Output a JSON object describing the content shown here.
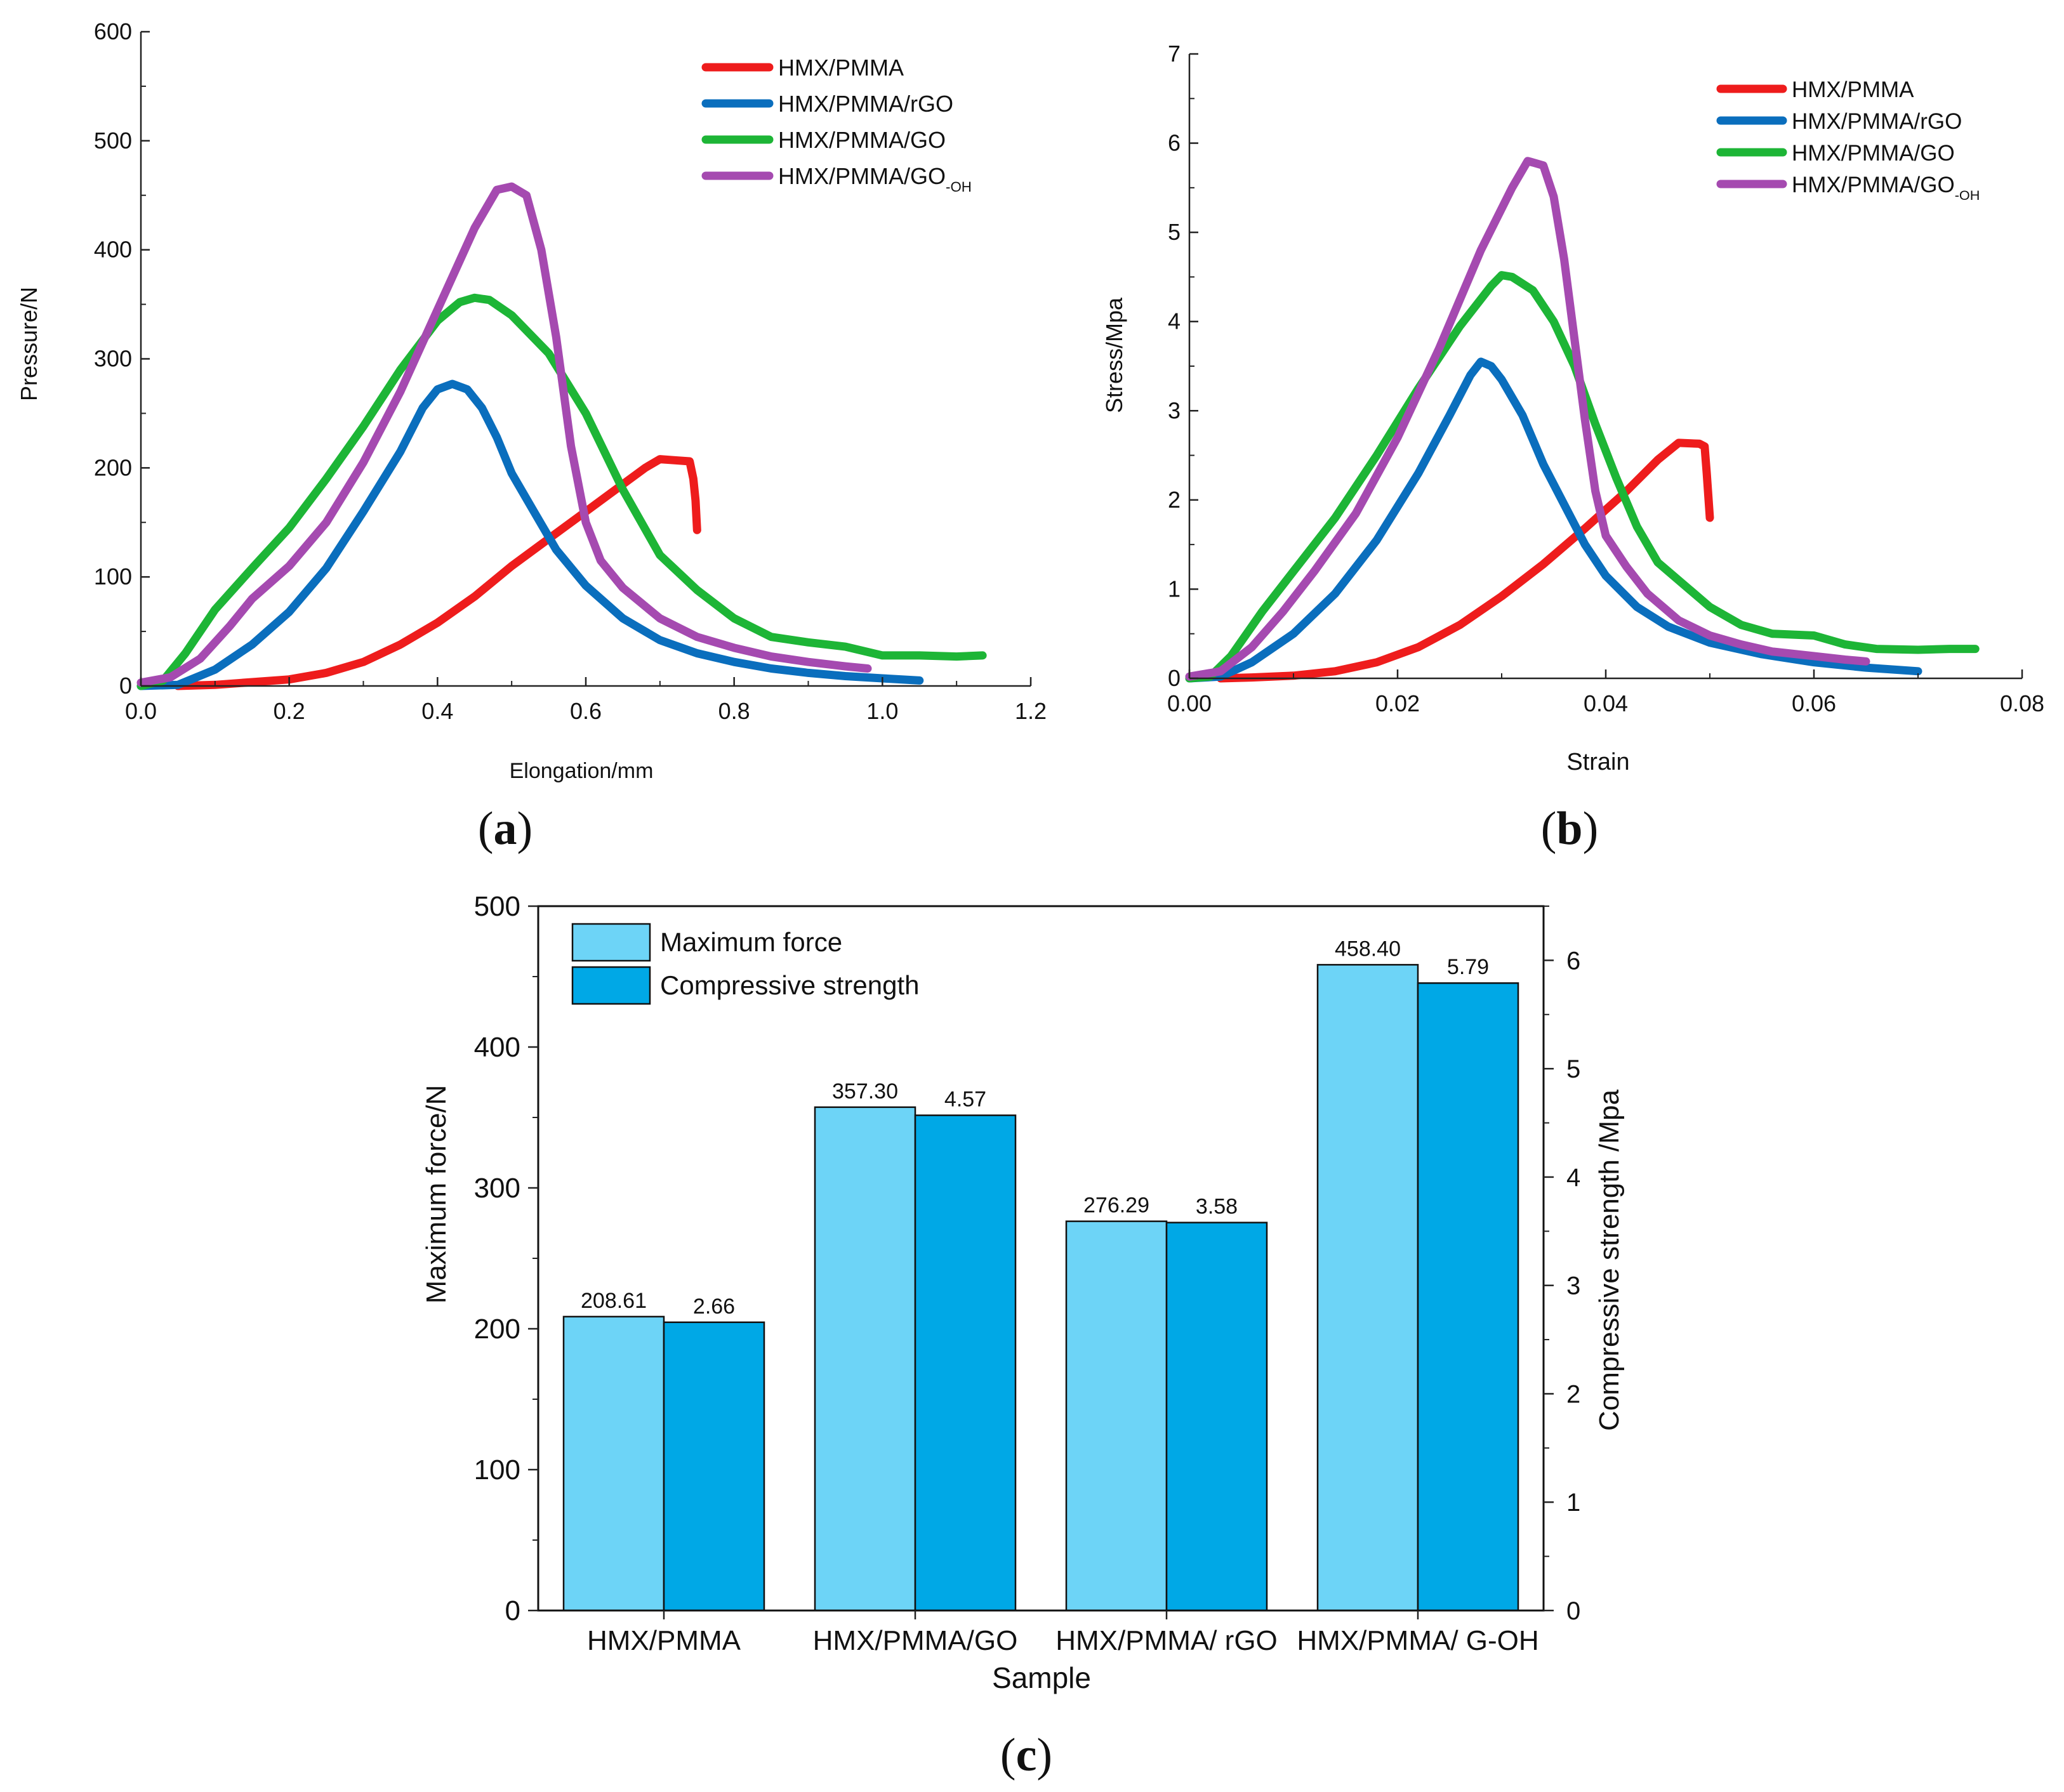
{
  "chart_data": [
    {
      "type": "line",
      "panel_label": "a",
      "xlabel": "Elongation/mm",
      "ylabel": "Pressure/N",
      "xlim": [
        0,
        1.2
      ],
      "ylim": [
        0,
        600
      ],
      "xticks": [
        0.0,
        0.2,
        0.4,
        0.6,
        0.8,
        1.0,
        1.2
      ],
      "xtick_labels": [
        "0.0",
        "0.2",
        "0.4",
        "0.6",
        "0.8",
        "1.0",
        "1.2"
      ],
      "yticks": [
        0,
        100,
        200,
        300,
        400,
        500,
        600
      ],
      "ytick_labels": [
        "0",
        "100",
        "200",
        "300",
        "400",
        "500",
        "600"
      ],
      "legend_position": "top-right",
      "series": [
        {
          "name": "HMX/PMMA",
          "subscript": "",
          "color": "#ee1c1c",
          "points": [
            [
              0.05,
              0
            ],
            [
              0.1,
              1
            ],
            [
              0.2,
              6
            ],
            [
              0.25,
              12
            ],
            [
              0.3,
              22
            ],
            [
              0.35,
              38
            ],
            [
              0.4,
              58
            ],
            [
              0.45,
              82
            ],
            [
              0.5,
              110
            ],
            [
              0.55,
              135
            ],
            [
              0.6,
              160
            ],
            [
              0.65,
              185
            ],
            [
              0.68,
              200
            ],
            [
              0.7,
              208
            ],
            [
              0.72,
              207
            ],
            [
              0.74,
              206
            ],
            [
              0.745,
              190
            ],
            [
              0.748,
              170
            ],
            [
              0.75,
              143
            ]
          ]
        },
        {
          "name": "HMX/PMMA/rGO",
          "subscript": "",
          "color": "#0a6ebd",
          "points": [
            [
              0.0,
              0
            ],
            [
              0.05,
              1
            ],
            [
              0.1,
              15
            ],
            [
              0.15,
              38
            ],
            [
              0.2,
              68
            ],
            [
              0.25,
              108
            ],
            [
              0.3,
              160
            ],
            [
              0.35,
              215
            ],
            [
              0.38,
              255
            ],
            [
              0.4,
              272
            ],
            [
              0.42,
              277
            ],
            [
              0.44,
              272
            ],
            [
              0.46,
              255
            ],
            [
              0.48,
              228
            ],
            [
              0.5,
              195
            ],
            [
              0.53,
              160
            ],
            [
              0.56,
              125
            ],
            [
              0.6,
              92
            ],
            [
              0.65,
              62
            ],
            [
              0.7,
              42
            ],
            [
              0.75,
              30
            ],
            [
              0.8,
              22
            ],
            [
              0.85,
              16
            ],
            [
              0.9,
              12
            ],
            [
              0.95,
              9
            ],
            [
              1.0,
              7
            ],
            [
              1.05,
              5
            ]
          ]
        },
        {
          "name": "HMX/PMMA/GO",
          "subscript": "",
          "color": "#1db536",
          "points": [
            [
              0.0,
              0
            ],
            [
              0.03,
              5
            ],
            [
              0.06,
              30
            ],
            [
              0.1,
              70
            ],
            [
              0.15,
              108
            ],
            [
              0.2,
              145
            ],
            [
              0.25,
              190
            ],
            [
              0.3,
              238
            ],
            [
              0.35,
              290
            ],
            [
              0.4,
              335
            ],
            [
              0.43,
              352
            ],
            [
              0.45,
              356
            ],
            [
              0.47,
              354
            ],
            [
              0.5,
              340
            ],
            [
              0.55,
              305
            ],
            [
              0.6,
              250
            ],
            [
              0.65,
              180
            ],
            [
              0.7,
              120
            ],
            [
              0.75,
              88
            ],
            [
              0.8,
              62
            ],
            [
              0.85,
              45
            ],
            [
              0.9,
              40
            ],
            [
              0.95,
              36
            ],
            [
              1.0,
              28
            ],
            [
              1.05,
              28
            ],
            [
              1.1,
              27
            ],
            [
              1.135,
              28
            ]
          ]
        },
        {
          "name": "HMX/PMMA/GO",
          "subscript": "-OH",
          "color": "#a54ab0",
          "points": [
            [
              0.0,
              3
            ],
            [
              0.04,
              8
            ],
            [
              0.08,
              25
            ],
            [
              0.12,
              55
            ],
            [
              0.15,
              80
            ],
            [
              0.2,
              110
            ],
            [
              0.25,
              150
            ],
            [
              0.3,
              205
            ],
            [
              0.35,
              270
            ],
            [
              0.4,
              345
            ],
            [
              0.45,
              420
            ],
            [
              0.48,
              455
            ],
            [
              0.5,
              458
            ],
            [
              0.52,
              450
            ],
            [
              0.54,
              400
            ],
            [
              0.56,
              320
            ],
            [
              0.58,
              220
            ],
            [
              0.6,
              150
            ],
            [
              0.62,
              115
            ],
            [
              0.65,
              90
            ],
            [
              0.7,
              62
            ],
            [
              0.75,
              45
            ],
            [
              0.8,
              35
            ],
            [
              0.85,
              27
            ],
            [
              0.9,
              22
            ],
            [
              0.95,
              18
            ],
            [
              0.98,
              16
            ]
          ]
        }
      ]
    },
    {
      "type": "line",
      "panel_label": "b",
      "xlabel": "Strain",
      "ylabel": "Stress/Mpa",
      "xlim": [
        0,
        0.08
      ],
      "ylim": [
        0,
        7
      ],
      "xticks": [
        0.0,
        0.02,
        0.04,
        0.06,
        0.08
      ],
      "xtick_labels": [
        "0.00",
        "0.02",
        "0.04",
        "0.06",
        "0.08"
      ],
      "yticks": [
        0,
        1,
        2,
        3,
        4,
        5,
        6,
        7
      ],
      "ytick_labels": [
        "0",
        "1",
        "2",
        "3",
        "4",
        "5",
        "6",
        "7"
      ],
      "legend_position": "top-right",
      "series": [
        {
          "name": "HMX/PMMA",
          "subscript": "",
          "color": "#ee1c1c",
          "points": [
            [
              0.003,
              0
            ],
            [
              0.006,
              0.01
            ],
            [
              0.01,
              0.03
            ],
            [
              0.014,
              0.08
            ],
            [
              0.018,
              0.18
            ],
            [
              0.022,
              0.35
            ],
            [
              0.026,
              0.6
            ],
            [
              0.03,
              0.92
            ],
            [
              0.034,
              1.28
            ],
            [
              0.038,
              1.68
            ],
            [
              0.042,
              2.1
            ],
            [
              0.045,
              2.45
            ],
            [
              0.047,
              2.64
            ],
            [
              0.049,
              2.63
            ],
            [
              0.0495,
              2.6
            ],
            [
              0.0497,
              2.3
            ],
            [
              0.05,
              1.8
            ]
          ]
        },
        {
          "name": "HMX/PMMA/rGO",
          "subscript": "",
          "color": "#0a6ebd",
          "points": [
            [
              0.0,
              0
            ],
            [
              0.003,
              0.02
            ],
            [
              0.006,
              0.18
            ],
            [
              0.01,
              0.5
            ],
            [
              0.014,
              0.95
            ],
            [
              0.018,
              1.55
            ],
            [
              0.022,
              2.3
            ],
            [
              0.025,
              2.95
            ],
            [
              0.027,
              3.4
            ],
            [
              0.028,
              3.55
            ],
            [
              0.029,
              3.5
            ],
            [
              0.03,
              3.35
            ],
            [
              0.032,
              2.95
            ],
            [
              0.034,
              2.4
            ],
            [
              0.036,
              1.95
            ],
            [
              0.038,
              1.5
            ],
            [
              0.04,
              1.15
            ],
            [
              0.043,
              0.8
            ],
            [
              0.046,
              0.58
            ],
            [
              0.05,
              0.4
            ],
            [
              0.055,
              0.27
            ],
            [
              0.06,
              0.18
            ],
            [
              0.065,
              0.12
            ],
            [
              0.07,
              0.08
            ]
          ]
        },
        {
          "name": "HMX/PMMA/GO",
          "subscript": "",
          "color": "#1db536",
          "points": [
            [
              0.0,
              0
            ],
            [
              0.002,
              0.02
            ],
            [
              0.004,
              0.25
            ],
            [
              0.007,
              0.75
            ],
            [
              0.01,
              1.2
            ],
            [
              0.014,
              1.8
            ],
            [
              0.018,
              2.5
            ],
            [
              0.022,
              3.25
            ],
            [
              0.026,
              3.95
            ],
            [
              0.029,
              4.4
            ],
            [
              0.03,
              4.52
            ],
            [
              0.031,
              4.5
            ],
            [
              0.033,
              4.35
            ],
            [
              0.035,
              4.0
            ],
            [
              0.037,
              3.5
            ],
            [
              0.039,
              2.85
            ],
            [
              0.041,
              2.25
            ],
            [
              0.043,
              1.7
            ],
            [
              0.045,
              1.3
            ],
            [
              0.048,
              1.0
            ],
            [
              0.05,
              0.8
            ],
            [
              0.053,
              0.6
            ],
            [
              0.056,
              0.5
            ],
            [
              0.06,
              0.48
            ],
            [
              0.063,
              0.38
            ],
            [
              0.066,
              0.33
            ],
            [
              0.07,
              0.32
            ],
            [
              0.073,
              0.33
            ],
            [
              0.0755,
              0.33
            ]
          ]
        },
        {
          "name": "HMX/PMMA/GO",
          "subscript": "-OH",
          "color": "#a54ab0",
          "points": [
            [
              0.0,
              0.02
            ],
            [
              0.003,
              0.08
            ],
            [
              0.006,
              0.35
            ],
            [
              0.009,
              0.75
            ],
            [
              0.012,
              1.2
            ],
            [
              0.016,
              1.85
            ],
            [
              0.02,
              2.7
            ],
            [
              0.024,
              3.7
            ],
            [
              0.028,
              4.8
            ],
            [
              0.031,
              5.5
            ],
            [
              0.0325,
              5.8
            ],
            [
              0.034,
              5.75
            ],
            [
              0.035,
              5.4
            ],
            [
              0.036,
              4.7
            ],
            [
              0.037,
              3.8
            ],
            [
              0.038,
              2.9
            ],
            [
              0.039,
              2.1
            ],
            [
              0.04,
              1.6
            ],
            [
              0.042,
              1.25
            ],
            [
              0.044,
              0.95
            ],
            [
              0.047,
              0.65
            ],
            [
              0.05,
              0.48
            ],
            [
              0.053,
              0.38
            ],
            [
              0.056,
              0.3
            ],
            [
              0.06,
              0.25
            ],
            [
              0.063,
              0.21
            ],
            [
              0.065,
              0.19
            ]
          ]
        }
      ]
    },
    {
      "type": "bar",
      "panel_label": "c",
      "xlabel": "Sample",
      "ylabel": "Maximum force/N",
      "ylabel_right": "Compressive strength /Mpa",
      "ylim": [
        0,
        500
      ],
      "ylim_right": [
        0,
        6.5
      ],
      "yticks": [
        0,
        100,
        200,
        300,
        400,
        500
      ],
      "ytick_labels": [
        "0",
        "100",
        "200",
        "300",
        "400",
        "500"
      ],
      "yticks_right": [
        0,
        1,
        2,
        3,
        4,
        5,
        6
      ],
      "ytick_labels_right": [
        "0",
        "1",
        "2",
        "3",
        "4",
        "5",
        "6"
      ],
      "categories": [
        "HMX/PMMA",
        "HMX/PMMA/GO",
        "HMX/PMMA/ rGO",
        "HMX/PMMA/ G-OH"
      ],
      "legend_position": "top-left",
      "series": [
        {
          "name": "Maximum force",
          "axis": "left",
          "color": "#6dd4f7",
          "values": [
            208.61,
            357.3,
            276.29,
            458.4
          ],
          "labels": [
            "208.61",
            "357.30",
            "276.29",
            "458.40"
          ]
        },
        {
          "name": "Compressive strength",
          "axis": "right",
          "color": "#00a8e6",
          "values": [
            2.66,
            4.57,
            3.58,
            5.79
          ],
          "labels": [
            "2.66",
            "4.57",
            "3.58",
            "5.79"
          ]
        }
      ]
    }
  ]
}
